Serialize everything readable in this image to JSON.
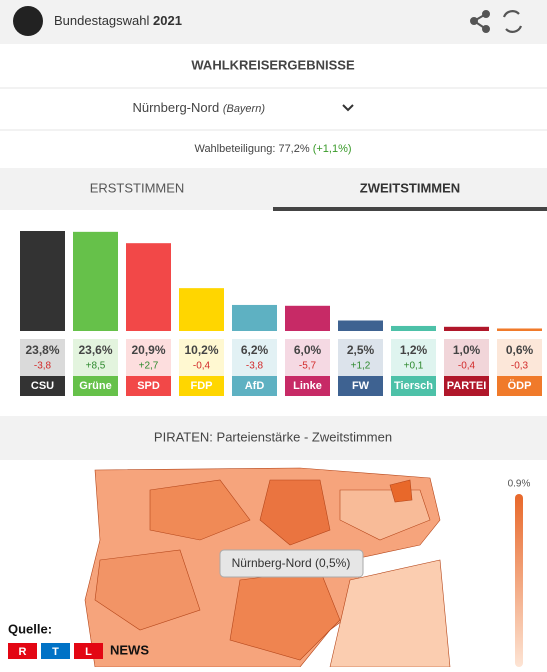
{
  "header": {
    "title": "Bundestagswahl",
    "year": "2021"
  },
  "section_title": "WAHLKREISERGEBNISSE",
  "district": {
    "name": "Nürnberg-Nord",
    "state": "(Bayern)"
  },
  "turnout": {
    "label": "Wahlbeteiligung: 77,2%",
    "change": "(+1,1%)"
  },
  "tabs": [
    "ERSTSTIMMEN",
    "ZWEITSTIMMEN"
  ],
  "chart_data": {
    "type": "bar",
    "categories": [
      "CSU",
      "Grüne",
      "SPD",
      "FDP",
      "AfD",
      "Linke",
      "FW",
      "Tiersch",
      "PARTEI",
      "ÖDP"
    ],
    "values": [
      23.8,
      23.6,
      20.9,
      10.2,
      6.2,
      6.0,
      2.5,
      1.2,
      1.0,
      0.6
    ],
    "value_labels": [
      "23,8%",
      "23,6%",
      "20,9%",
      "10,2%",
      "6,2%",
      "6,0%",
      "2,5%",
      "1,2%",
      "1,0%",
      "0,6%"
    ],
    "changes": [
      -3.8,
      8.5,
      2.7,
      -0.4,
      -3.8,
      -5.7,
      1.2,
      0.1,
      -0.4,
      -0.3
    ],
    "change_labels": [
      "-3,8",
      "+8,5",
      "+2,7",
      "-0,4",
      "-3,8",
      "-5,7",
      "+1,2",
      "+0,1",
      "-0,4",
      "-0,3"
    ],
    "colors": [
      "#333333",
      "#66c14a",
      "#f24848",
      "#ffd600",
      "#5eb1c2",
      "#c72a66",
      "#3e6291",
      "#4dc1a8",
      "#b0172a",
      "#f07a2a"
    ]
  },
  "map": {
    "title": "PIRATEN: Parteienstärke - Zweitstimmen",
    "tooltip": "Nürnberg-Nord (0,5%)",
    "legend_max": "0.9%"
  },
  "footer": {
    "source": "Quelle:",
    "brand": [
      "R",
      "T",
      "L"
    ],
    "brand_suffix": "NEWS"
  }
}
